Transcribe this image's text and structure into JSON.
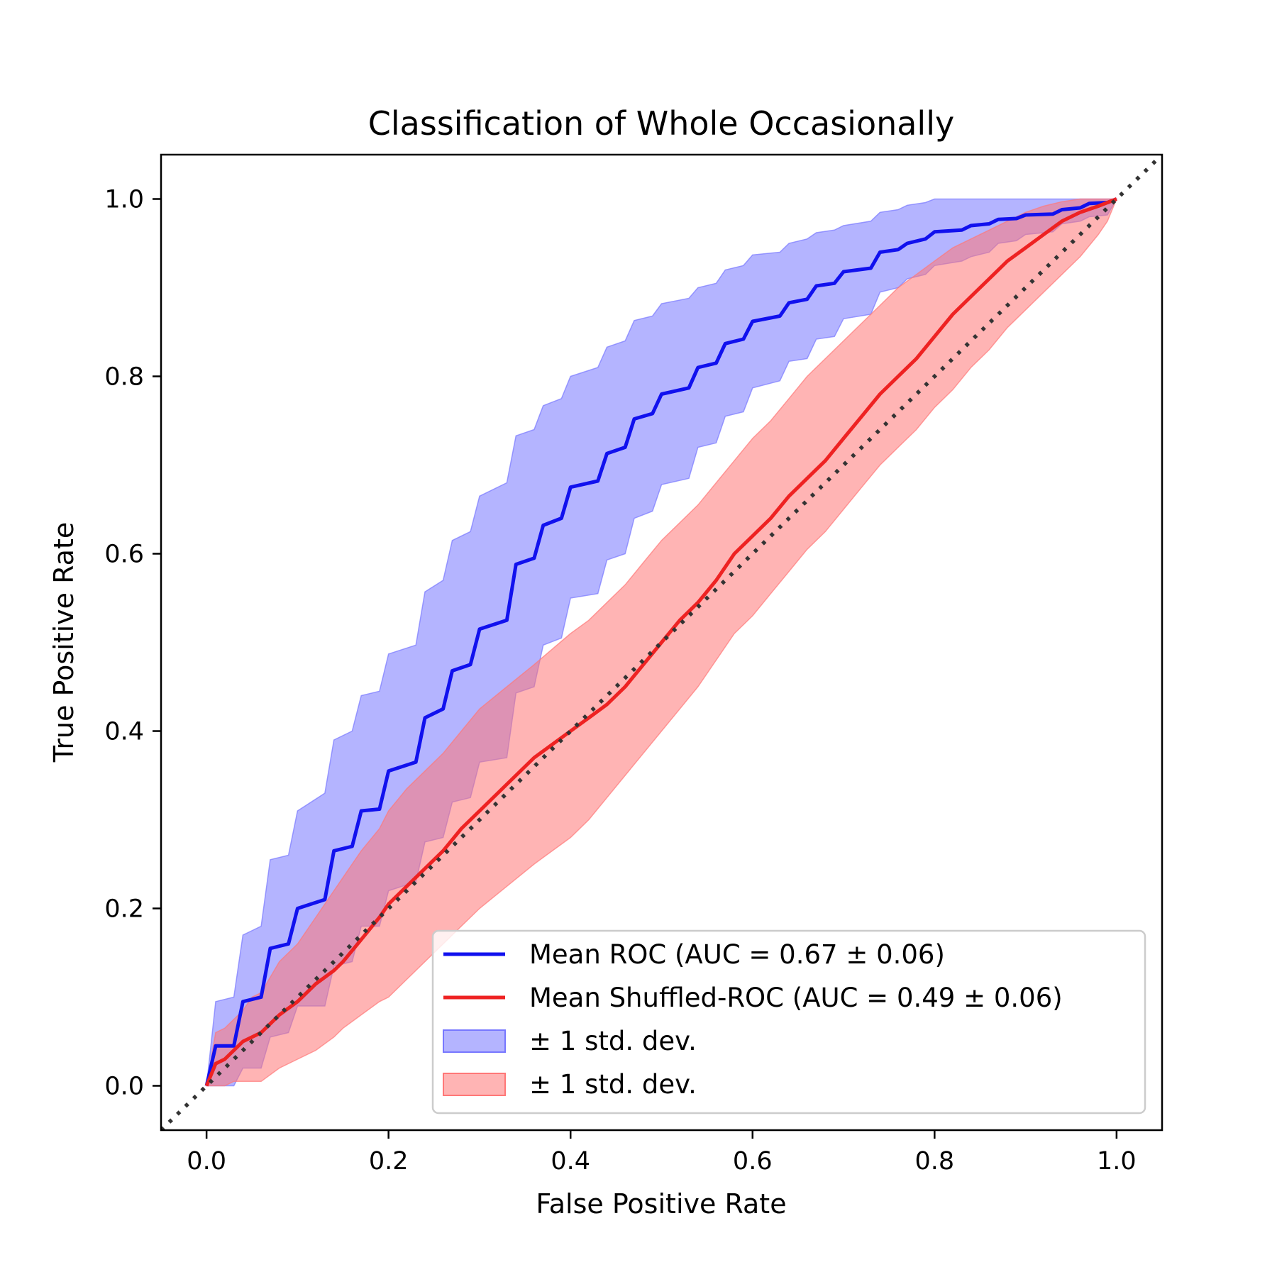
{
  "chart_data": {
    "type": "line",
    "title": "Classification of Whole Occasionally",
    "xlabel": "False Positive Rate",
    "ylabel": "True Positive Rate",
    "xlim": [
      -0.05,
      1.05
    ],
    "ylim": [
      -0.05,
      1.05
    ],
    "xticks": [
      "0.0",
      "0.2",
      "0.4",
      "0.6",
      "0.8",
      "1.0"
    ],
    "yticks": [
      "0.0",
      "0.2",
      "0.4",
      "0.6",
      "0.8",
      "1.0"
    ],
    "grid": false,
    "legend_position": "lower-right",
    "reference_line": {
      "x": [
        -0.05,
        1.05
      ],
      "y": [
        -0.05,
        1.05
      ],
      "style": "dotted",
      "color": "#333333"
    },
    "series": [
      {
        "name": "Mean ROC (AUC = 0.67 ± 0.06)",
        "color": "#1111ee",
        "x": [
          0.0,
          0.01,
          0.03,
          0.04,
          0.06,
          0.07,
          0.09,
          0.1,
          0.13,
          0.14,
          0.16,
          0.17,
          0.19,
          0.2,
          0.23,
          0.24,
          0.26,
          0.27,
          0.29,
          0.3,
          0.33,
          0.34,
          0.36,
          0.37,
          0.39,
          0.4,
          0.43,
          0.44,
          0.46,
          0.47,
          0.49,
          0.5,
          0.53,
          0.54,
          0.56,
          0.57,
          0.59,
          0.6,
          0.63,
          0.64,
          0.66,
          0.67,
          0.69,
          0.7,
          0.73,
          0.74,
          0.76,
          0.77,
          0.79,
          0.8,
          0.83,
          0.84,
          0.86,
          0.87,
          0.89,
          0.9,
          0.93,
          0.94,
          0.96,
          0.97,
          0.99,
          1.0
        ],
        "y": [
          0.0,
          0.045,
          0.045,
          0.095,
          0.1,
          0.155,
          0.16,
          0.2,
          0.21,
          0.265,
          0.27,
          0.31,
          0.312,
          0.355,
          0.365,
          0.415,
          0.425,
          0.468,
          0.475,
          0.515,
          0.525,
          0.588,
          0.595,
          0.632,
          0.64,
          0.675,
          0.682,
          0.713,
          0.72,
          0.752,
          0.758,
          0.78,
          0.787,
          0.81,
          0.815,
          0.837,
          0.842,
          0.862,
          0.868,
          0.883,
          0.887,
          0.902,
          0.905,
          0.918,
          0.922,
          0.94,
          0.943,
          0.95,
          0.955,
          0.963,
          0.965,
          0.97,
          0.972,
          0.977,
          0.978,
          0.982,
          0.983,
          0.988,
          0.99,
          0.995,
          0.996,
          1.0
        ]
      },
      {
        "name": "Mean Shuffled-ROC (AUC = 0.49 ± 0.06)",
        "color": "#ee2222",
        "x": [
          0.0,
          0.01,
          0.02,
          0.03,
          0.04,
          0.05,
          0.06,
          0.08,
          0.1,
          0.12,
          0.14,
          0.15,
          0.17,
          0.19,
          0.2,
          0.22,
          0.24,
          0.26,
          0.28,
          0.3,
          0.33,
          0.36,
          0.4,
          0.42,
          0.44,
          0.46,
          0.48,
          0.5,
          0.52,
          0.54,
          0.56,
          0.58,
          0.6,
          0.62,
          0.64,
          0.66,
          0.68,
          0.7,
          0.72,
          0.74,
          0.76,
          0.78,
          0.8,
          0.82,
          0.84,
          0.86,
          0.88,
          0.9,
          0.92,
          0.94,
          0.96,
          0.98,
          0.99,
          1.0
        ],
        "y": [
          0.0,
          0.025,
          0.03,
          0.04,
          0.05,
          0.055,
          0.06,
          0.08,
          0.095,
          0.115,
          0.13,
          0.14,
          0.165,
          0.19,
          0.205,
          0.225,
          0.245,
          0.265,
          0.29,
          0.31,
          0.34,
          0.37,
          0.4,
          0.415,
          0.43,
          0.45,
          0.475,
          0.5,
          0.525,
          0.545,
          0.57,
          0.6,
          0.62,
          0.64,
          0.665,
          0.685,
          0.705,
          0.73,
          0.755,
          0.78,
          0.8,
          0.82,
          0.845,
          0.87,
          0.89,
          0.91,
          0.93,
          0.945,
          0.96,
          0.975,
          0.985,
          0.992,
          0.996,
          1.0
        ]
      },
      {
        "name": "± 1 std. dev.",
        "type": "band",
        "color": "#7777ff",
        "x": [
          0.0,
          0.01,
          0.03,
          0.04,
          0.06,
          0.07,
          0.09,
          0.1,
          0.13,
          0.14,
          0.16,
          0.17,
          0.19,
          0.2,
          0.23,
          0.24,
          0.26,
          0.27,
          0.29,
          0.3,
          0.33,
          0.34,
          0.36,
          0.37,
          0.39,
          0.4,
          0.43,
          0.44,
          0.46,
          0.47,
          0.49,
          0.5,
          0.53,
          0.54,
          0.56,
          0.57,
          0.59,
          0.6,
          0.63,
          0.64,
          0.66,
          0.67,
          0.69,
          0.7,
          0.73,
          0.74,
          0.76,
          0.77,
          0.79,
          0.8,
          0.83,
          0.84,
          0.86,
          0.87,
          0.89,
          0.9,
          0.93,
          0.94,
          0.96,
          0.97,
          0.99,
          1.0
        ],
        "upper": [
          0.0,
          0.095,
          0.1,
          0.17,
          0.18,
          0.255,
          0.26,
          0.31,
          0.33,
          0.39,
          0.4,
          0.44,
          0.445,
          0.487,
          0.497,
          0.557,
          0.57,
          0.615,
          0.625,
          0.665,
          0.68,
          0.733,
          0.74,
          0.767,
          0.775,
          0.8,
          0.81,
          0.833,
          0.84,
          0.863,
          0.868,
          0.882,
          0.888,
          0.9,
          0.905,
          0.92,
          0.925,
          0.937,
          0.94,
          0.95,
          0.955,
          0.962,
          0.965,
          0.97,
          0.975,
          0.985,
          0.988,
          0.993,
          0.996,
          1.0,
          1.0,
          1.0,
          1.0,
          1.0,
          1.0,
          1.0,
          1.0,
          1.0,
          1.0,
          1.0,
          1.0,
          1.0
        ],
        "lower": [
          0.0,
          0.0,
          0.0,
          0.02,
          0.02,
          0.055,
          0.06,
          0.09,
          0.09,
          0.135,
          0.14,
          0.18,
          0.18,
          0.22,
          0.23,
          0.275,
          0.28,
          0.32,
          0.325,
          0.365,
          0.37,
          0.443,
          0.45,
          0.497,
          0.505,
          0.55,
          0.555,
          0.593,
          0.6,
          0.64,
          0.648,
          0.678,
          0.685,
          0.72,
          0.725,
          0.755,
          0.76,
          0.787,
          0.795,
          0.817,
          0.82,
          0.842,
          0.845,
          0.865,
          0.87,
          0.895,
          0.9,
          0.91,
          0.915,
          0.925,
          0.93,
          0.935,
          0.94,
          0.95,
          0.953,
          0.96,
          0.963,
          0.972,
          0.975,
          0.98,
          0.982,
          1.0
        ]
      },
      {
        "name": "± 1 std. dev.",
        "type": "band",
        "color": "#ff7777",
        "x": [
          0.0,
          0.01,
          0.02,
          0.03,
          0.04,
          0.05,
          0.06,
          0.08,
          0.1,
          0.12,
          0.14,
          0.15,
          0.17,
          0.19,
          0.2,
          0.22,
          0.24,
          0.26,
          0.28,
          0.3,
          0.33,
          0.36,
          0.4,
          0.42,
          0.44,
          0.46,
          0.48,
          0.5,
          0.52,
          0.54,
          0.56,
          0.58,
          0.6,
          0.62,
          0.64,
          0.66,
          0.68,
          0.7,
          0.72,
          0.74,
          0.76,
          0.78,
          0.8,
          0.82,
          0.84,
          0.86,
          0.88,
          0.9,
          0.92,
          0.94,
          0.96,
          0.98,
          0.99,
          1.0
        ],
        "upper": [
          0.0,
          0.06,
          0.065,
          0.075,
          0.085,
          0.1,
          0.105,
          0.14,
          0.16,
          0.19,
          0.22,
          0.235,
          0.265,
          0.29,
          0.31,
          0.335,
          0.355,
          0.375,
          0.4,
          0.425,
          0.45,
          0.475,
          0.51,
          0.525,
          0.545,
          0.565,
          0.59,
          0.615,
          0.635,
          0.655,
          0.68,
          0.705,
          0.73,
          0.75,
          0.775,
          0.8,
          0.82,
          0.84,
          0.86,
          0.88,
          0.9,
          0.915,
          0.93,
          0.945,
          0.955,
          0.965,
          0.975,
          0.985,
          0.992,
          0.997,
          1.0,
          1.0,
          1.0,
          1.0
        ],
        "lower": [
          0.0,
          0.0,
          0.0,
          0.005,
          0.005,
          0.005,
          0.005,
          0.02,
          0.03,
          0.04,
          0.055,
          0.065,
          0.08,
          0.095,
          0.1,
          0.12,
          0.14,
          0.16,
          0.18,
          0.2,
          0.225,
          0.25,
          0.28,
          0.3,
          0.325,
          0.35,
          0.375,
          0.4,
          0.425,
          0.45,
          0.48,
          0.51,
          0.53,
          0.555,
          0.58,
          0.605,
          0.625,
          0.65,
          0.675,
          0.7,
          0.72,
          0.74,
          0.765,
          0.785,
          0.81,
          0.83,
          0.855,
          0.875,
          0.895,
          0.915,
          0.935,
          0.96,
          0.975,
          1.0
        ]
      }
    ]
  }
}
